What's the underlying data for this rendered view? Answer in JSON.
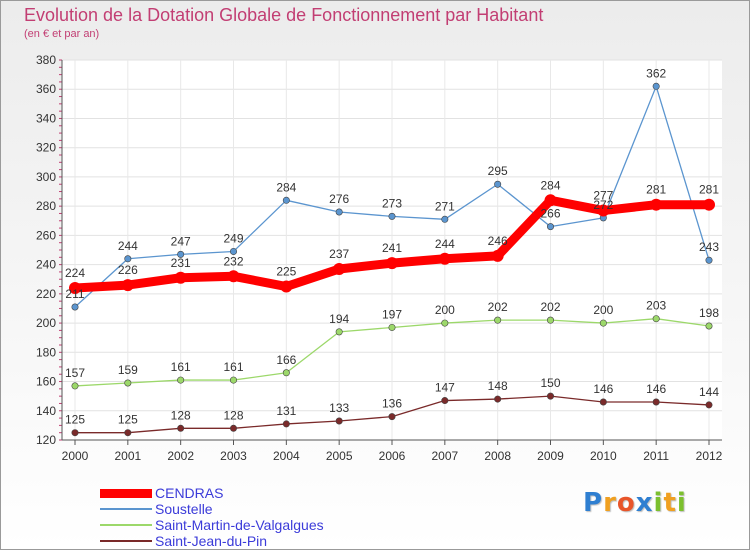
{
  "header": {
    "title": "Evolution de la Dotation Globale de Fonctionnement par Habitant",
    "subtitle": "(en € et par an)"
  },
  "logo": {
    "text": "Proxiti",
    "letters": [
      {
        "ch": "P",
        "color": "#2f7fd1"
      },
      {
        "ch": "r",
        "color": "#f0a020"
      },
      {
        "ch": "o",
        "color": "#e8552a"
      },
      {
        "ch": "x",
        "color": "#2f7fd1"
      },
      {
        "ch": "i",
        "color": "#7cc02e"
      },
      {
        "ch": "t",
        "color": "#f0a020"
      },
      {
        "ch": "i",
        "color": "#7cc02e"
      }
    ]
  },
  "chart_data": {
    "type": "line",
    "title": "Evolution de la Dotation Globale de Fonctionnement par Habitant",
    "subtitle": "(en € et par an)",
    "xlabel": "",
    "ylabel": "",
    "x": [
      2000,
      2001,
      2002,
      2003,
      2004,
      2005,
      2006,
      2007,
      2008,
      2009,
      2010,
      2011,
      2012
    ],
    "ylim": [
      120,
      380
    ],
    "yticks": [
      120,
      140,
      160,
      180,
      200,
      220,
      240,
      260,
      280,
      300,
      320,
      340,
      360,
      380
    ],
    "grid": true,
    "legend_position": "bottom-left",
    "series": [
      {
        "name": "CENDRAS",
        "color": "#ff0000",
        "style": "thick",
        "values": [
          224,
          226,
          231,
          232,
          225,
          237,
          241,
          244,
          246,
          284,
          277,
          281,
          281
        ]
      },
      {
        "name": "Soustelle",
        "color": "#5b95cf",
        "style": "thin",
        "values": [
          211,
          244,
          247,
          249,
          284,
          276,
          273,
          271,
          295,
          266,
          272,
          362,
          243
        ]
      },
      {
        "name": "Saint-Martin-de-Valgalgues",
        "color": "#9cd86a",
        "style": "thin",
        "values": [
          157,
          159,
          161,
          161,
          166,
          194,
          197,
          200,
          202,
          202,
          200,
          203,
          198
        ]
      },
      {
        "name": "Saint-Jean-du-Pin",
        "color": "#7a2a2a",
        "style": "thin",
        "values": [
          125,
          125,
          128,
          128,
          131,
          133,
          136,
          147,
          148,
          150,
          146,
          146,
          144
        ]
      }
    ]
  }
}
